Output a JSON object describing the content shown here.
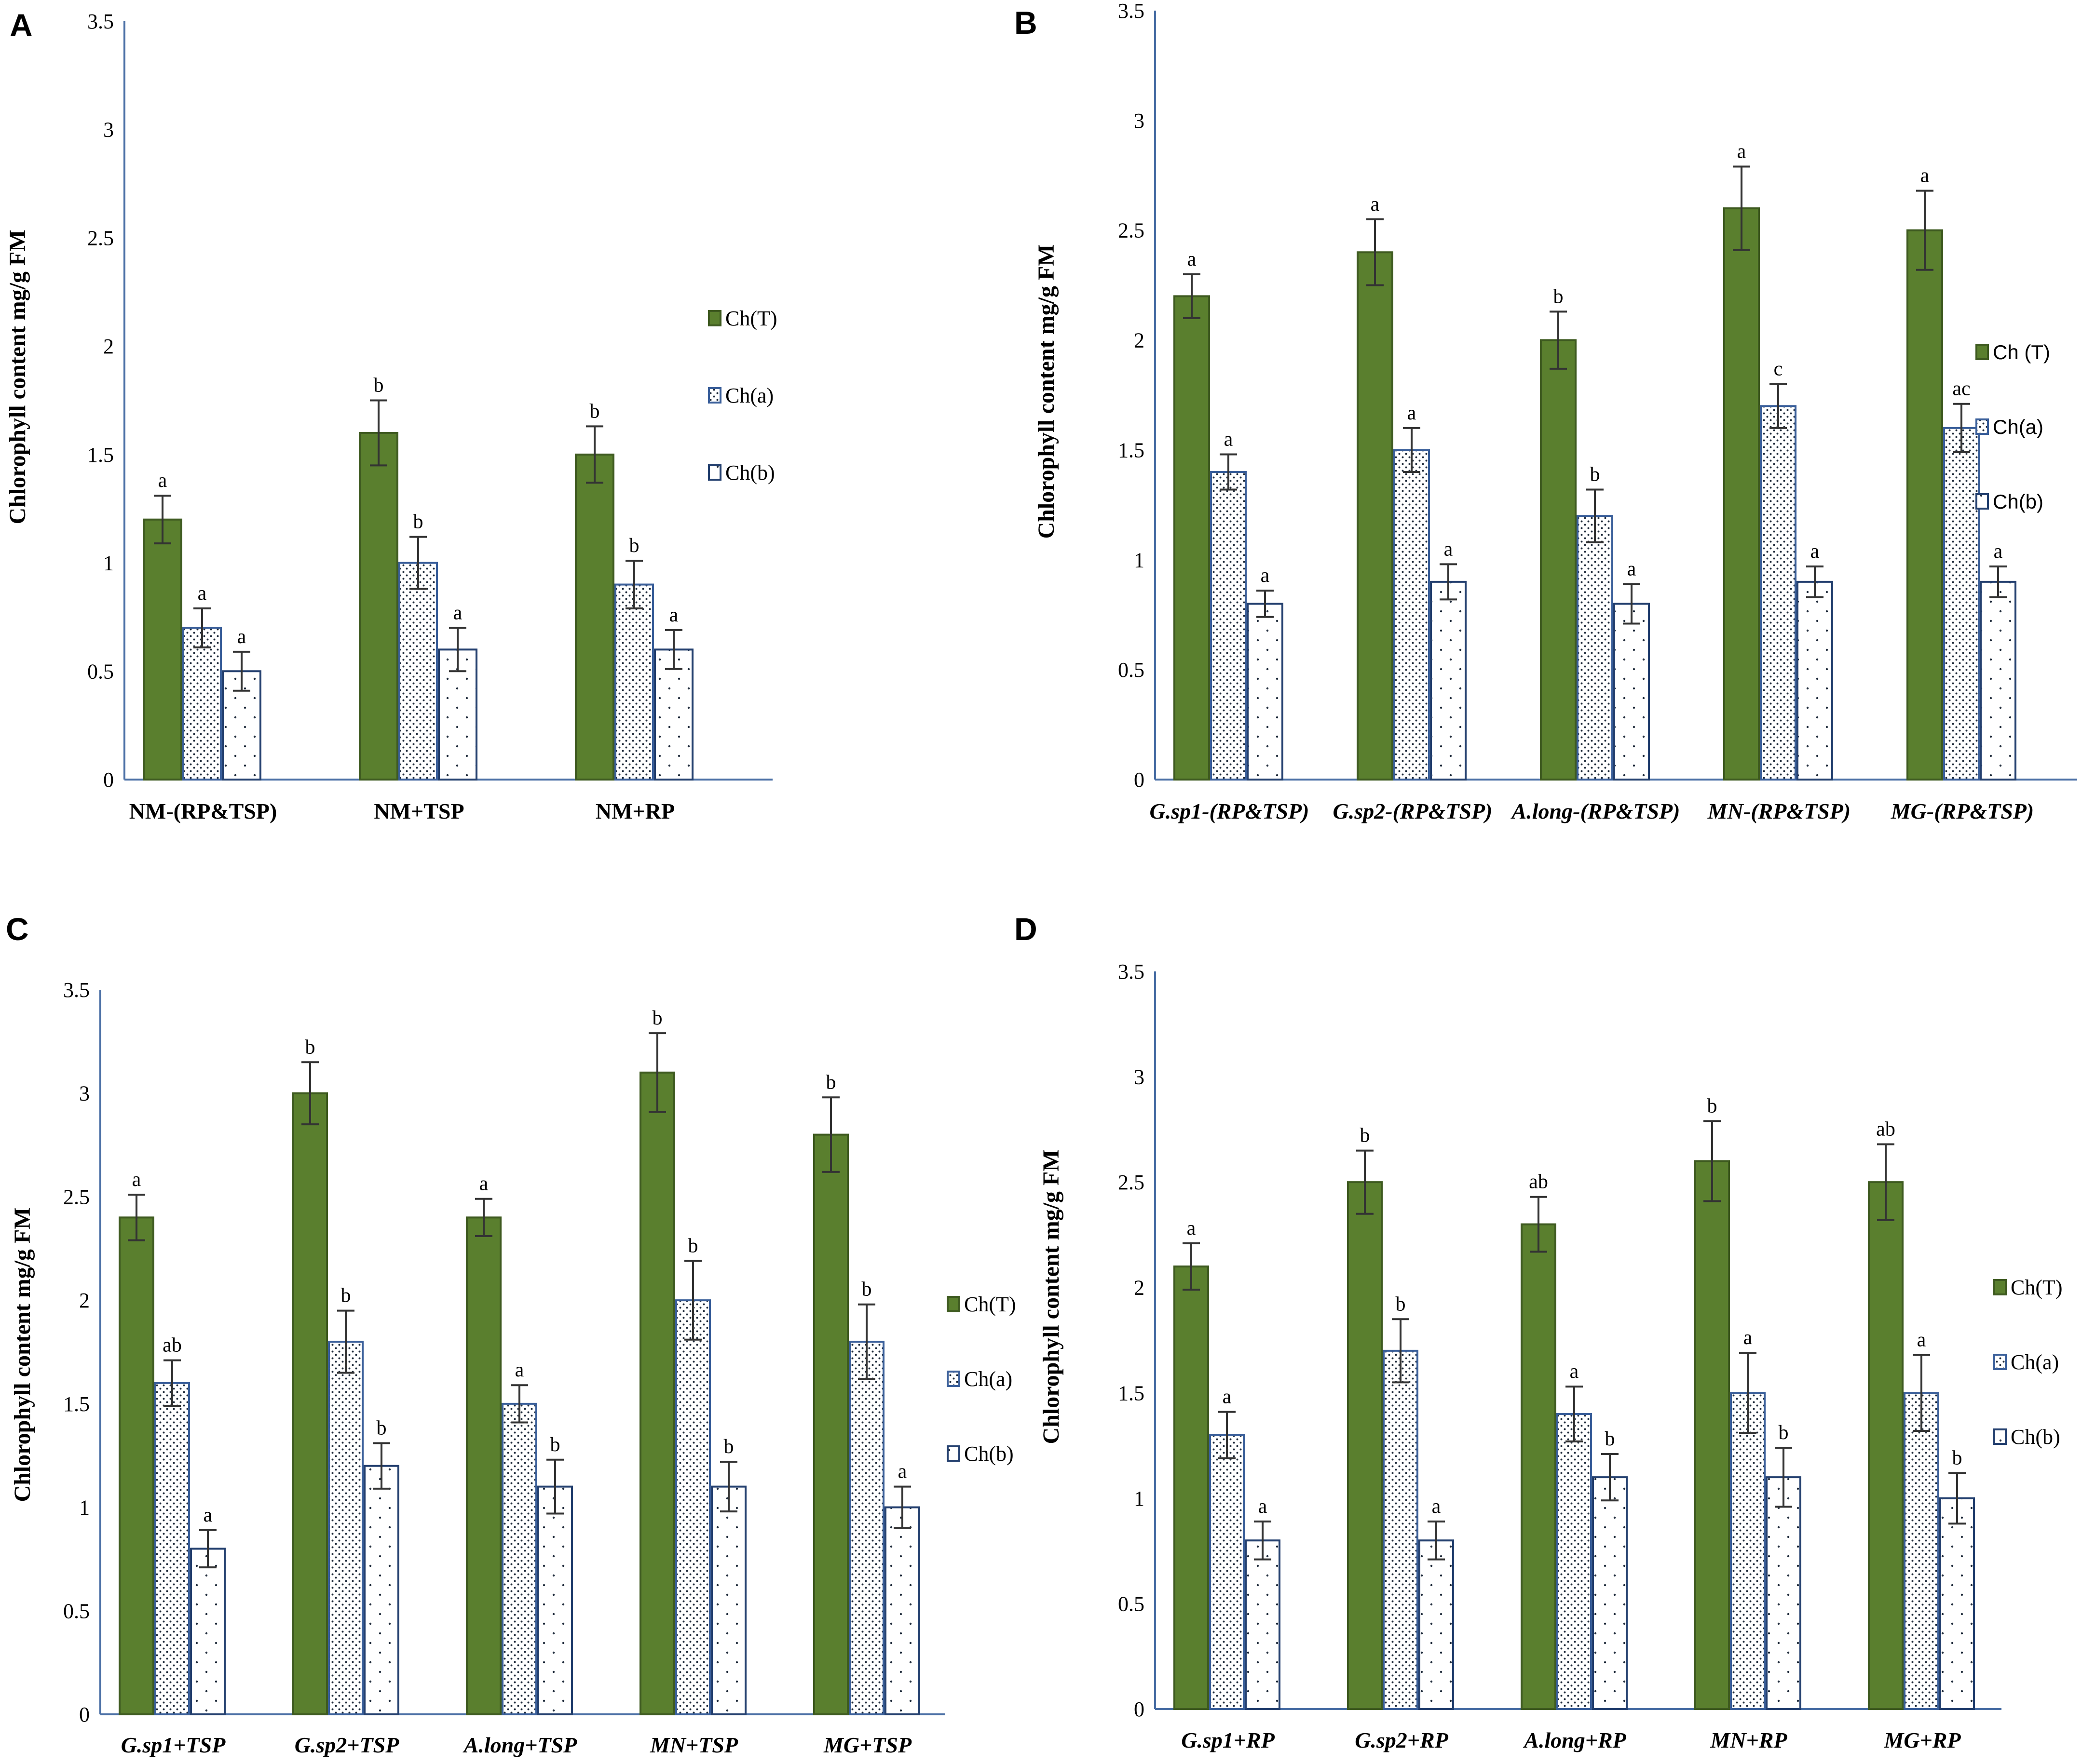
{
  "colors": {
    "ch_t": "#5a7f2e",
    "ch_t_stroke": "#3e5a20",
    "ch_a_stroke": "#3a5f9a",
    "ch_b_stroke": "#24406f",
    "axis": "#4a6fa5",
    "error": "#333333"
  },
  "chart_data": [
    {
      "panel": "A",
      "type": "bar",
      "ylabel": "Chlorophyll content mg/g FM",
      "ylim": [
        0,
        3.5
      ],
      "yticks": [
        "0",
        "0.5",
        "1",
        "1.5",
        "2",
        "2.5",
        "3",
        "3.5"
      ],
      "categories": [
        "NM-(RP&TSP)",
        "NM+TSP",
        "NM+RP"
      ],
      "italic_categories": false,
      "legend_labels": [
        "Ch(T)",
        "Ch(a)",
        "Ch(b)"
      ],
      "series": [
        {
          "name": "Ch(T)",
          "values": [
            1.2,
            1.6,
            1.5
          ],
          "errors": [
            0.11,
            0.15,
            0.13
          ],
          "letters": [
            "a",
            "b",
            "b"
          ]
        },
        {
          "name": "Ch(a)",
          "values": [
            0.7,
            1.0,
            0.9
          ],
          "errors": [
            0.09,
            0.12,
            0.11
          ],
          "letters": [
            "a",
            "b",
            "b"
          ]
        },
        {
          "name": "Ch(b)",
          "values": [
            0.5,
            0.6,
            0.6
          ],
          "errors": [
            0.09,
            0.1,
            0.09
          ],
          "letters": [
            "a",
            "a",
            "a"
          ]
        }
      ]
    },
    {
      "panel": "B",
      "type": "bar",
      "ylabel": "Chlorophyll content mg/g FM",
      "ylim": [
        0,
        3.5
      ],
      "yticks": [
        "0",
        "0.5",
        "1",
        "1.5",
        "2",
        "2.5",
        "3",
        "3.5"
      ],
      "categories": [
        "G.sp1-(RP&TSP)",
        "G.sp2-(RP&TSP)",
        "A.long-(RP&TSP)",
        "MN-(RP&TSP)",
        "MG-(RP&TSP)"
      ],
      "italic_categories": true,
      "legend_labels": [
        "Ch (T)",
        "Ch(a)",
        "Ch(b)"
      ],
      "series": [
        {
          "name": "Ch (T)",
          "values": [
            2.2,
            2.4,
            2.0,
            2.6,
            2.5
          ],
          "errors": [
            0.1,
            0.15,
            0.13,
            0.19,
            0.18
          ],
          "letters": [
            "a",
            "a",
            "b",
            "a",
            "a"
          ]
        },
        {
          "name": "Ch(a)",
          "values": [
            1.4,
            1.5,
            1.2,
            1.7,
            1.6
          ],
          "errors": [
            0.08,
            0.1,
            0.12,
            0.1,
            0.11
          ],
          "letters": [
            "a",
            "a",
            "b",
            "c",
            "ac"
          ]
        },
        {
          "name": "Ch(b)",
          "values": [
            0.8,
            0.9,
            0.8,
            0.9,
            0.9
          ],
          "errors": [
            0.06,
            0.08,
            0.09,
            0.07,
            0.07
          ],
          "letters": [
            "a",
            "a",
            "a",
            "a",
            "a"
          ]
        }
      ]
    },
    {
      "panel": "C",
      "type": "bar",
      "ylabel": "Chlorophyll content mg/g FM",
      "ylim": [
        0,
        3.5
      ],
      "yticks": [
        "0",
        "0.5",
        "1",
        "1.5",
        "2",
        "2.5",
        "3",
        "3.5"
      ],
      "categories": [
        "G.sp1+TSP",
        "G.sp2+TSP",
        "A.long+TSP",
        "MN+TSP",
        "MG+TSP"
      ],
      "italic_categories": true,
      "legend_labels": [
        "Ch(T)",
        "Ch(a)",
        "Ch(b)"
      ],
      "series": [
        {
          "name": "Ch(T)",
          "values": [
            2.4,
            3.0,
            2.4,
            3.1,
            2.8
          ],
          "errors": [
            0.11,
            0.15,
            0.09,
            0.19,
            0.18
          ],
          "letters": [
            "a",
            "b",
            "a",
            "b",
            "b"
          ]
        },
        {
          "name": "Ch(a)",
          "values": [
            1.6,
            1.8,
            1.5,
            2.0,
            1.8
          ],
          "errors": [
            0.11,
            0.15,
            0.09,
            0.19,
            0.18
          ],
          "letters": [
            "ab",
            "b",
            "a",
            "b",
            "b"
          ]
        },
        {
          "name": "Ch(b)",
          "values": [
            0.8,
            1.2,
            1.1,
            1.1,
            1.0
          ],
          "errors": [
            0.09,
            0.11,
            0.13,
            0.12,
            0.1
          ],
          "letters": [
            "a",
            "b",
            "b",
            "b",
            "a"
          ]
        }
      ]
    },
    {
      "panel": "D",
      "type": "bar",
      "ylabel": "Chlorophyll content mg/g FM",
      "ylim": [
        0,
        3.5
      ],
      "yticks": [
        "0",
        "0.5",
        "1",
        "1.5",
        "2",
        "2.5",
        "3",
        "3.5"
      ],
      "categories": [
        "G.sp1+RP",
        "G.sp2+RP",
        "A.long+RP",
        "MN+RP",
        "MG+RP"
      ],
      "italic_categories": true,
      "legend_labels": [
        "Ch(T)",
        "Ch(a)",
        "Ch(b)"
      ],
      "series": [
        {
          "name": "Ch(T)",
          "values": [
            2.1,
            2.5,
            2.3,
            2.6,
            2.5
          ],
          "errors": [
            0.11,
            0.15,
            0.13,
            0.19,
            0.18
          ],
          "letters": [
            "a",
            "b",
            "ab",
            "b",
            "ab"
          ]
        },
        {
          "name": "Ch(a)",
          "values": [
            1.3,
            1.7,
            1.4,
            1.5,
            1.5
          ],
          "errors": [
            0.11,
            0.15,
            0.13,
            0.19,
            0.18
          ],
          "letters": [
            "a",
            "b",
            "a",
            "a",
            "a"
          ]
        },
        {
          "name": "Ch(b)",
          "values": [
            0.8,
            0.8,
            1.1,
            1.1,
            1.0
          ],
          "errors": [
            0.09,
            0.09,
            0.11,
            0.14,
            0.12
          ],
          "letters": [
            "a",
            "a",
            "b",
            "b",
            "b"
          ]
        }
      ]
    }
  ]
}
